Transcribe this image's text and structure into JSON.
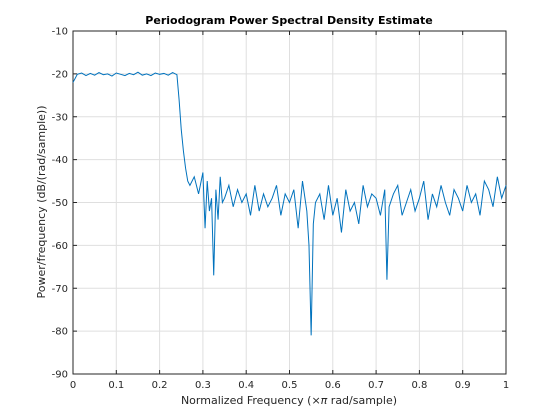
{
  "chart_data": {
    "type": "line",
    "title": "Periodogram Power Spectral Density Estimate",
    "xlabel_prefix": "Normalized Frequency  (",
    "xlabel_symbol": "×π",
    "xlabel_suffix": " rad/sample)",
    "ylabel": "Power/frequency (dB/(rad/sample))",
    "xlim": [
      0,
      1
    ],
    "ylim": [
      -90,
      -10
    ],
    "xticks": [
      0,
      0.1,
      0.2,
      0.3,
      0.4,
      0.5,
      0.6,
      0.7,
      0.8,
      0.9,
      1
    ],
    "xtick_labels": [
      "0",
      "0.1",
      "0.2",
      "0.3",
      "0.4",
      "0.5",
      "0.6",
      "0.7",
      "0.8",
      "0.9",
      "1"
    ],
    "yticks": [
      -90,
      -80,
      -70,
      -60,
      -50,
      -40,
      -30,
      -20,
      -10
    ],
    "ytick_labels": [
      "-90",
      "-80",
      "-70",
      "-60",
      "-50",
      "-40",
      "-30",
      "-20",
      "-10"
    ],
    "grid": true,
    "colors": {
      "line": "#0072bd",
      "grid": "#dfdfdf",
      "axes": "#262626"
    },
    "series": [
      {
        "x": [
          0,
          0.01,
          0.02,
          0.03,
          0.04,
          0.05,
          0.06,
          0.07,
          0.08,
          0.09,
          0.1,
          0.11,
          0.12,
          0.13,
          0.14,
          0.15,
          0.16,
          0.17,
          0.18,
          0.19,
          0.2,
          0.21,
          0.22,
          0.23,
          0.24,
          0.245,
          0.25,
          0.255,
          0.26,
          0.265,
          0.27,
          0.28,
          0.29,
          0.3,
          0.305,
          0.31,
          0.315,
          0.32,
          0.325,
          0.33,
          0.335,
          0.34,
          0.345,
          0.35,
          0.36,
          0.37,
          0.38,
          0.39,
          0.4,
          0.41,
          0.42,
          0.43,
          0.44,
          0.45,
          0.46,
          0.47,
          0.48,
          0.49,
          0.5,
          0.51,
          0.52,
          0.53,
          0.54,
          0.545,
          0.55,
          0.555,
          0.56,
          0.57,
          0.58,
          0.59,
          0.6,
          0.61,
          0.62,
          0.63,
          0.64,
          0.65,
          0.66,
          0.67,
          0.68,
          0.69,
          0.7,
          0.71,
          0.72,
          0.725,
          0.73,
          0.74,
          0.75,
          0.76,
          0.77,
          0.78,
          0.79,
          0.8,
          0.81,
          0.82,
          0.83,
          0.84,
          0.85,
          0.86,
          0.87,
          0.88,
          0.89,
          0.9,
          0.91,
          0.92,
          0.93,
          0.94,
          0.95,
          0.96,
          0.97,
          0.98,
          0.99,
          1
        ],
        "y": [
          -22,
          -20.1,
          -19.8,
          -20.4,
          -19.9,
          -20.3,
          -19.7,
          -20.2,
          -20.0,
          -20.5,
          -19.8,
          -20.1,
          -20.4,
          -19.9,
          -20.2,
          -19.6,
          -20.3,
          -20.0,
          -20.4,
          -19.8,
          -20.1,
          -19.9,
          -20.3,
          -19.7,
          -20.2,
          -26,
          -33,
          -38,
          -42,
          -45,
          -46,
          -44,
          -48,
          -43,
          -56,
          -45,
          -52,
          -49,
          -67,
          -47,
          -54,
          -44,
          -50,
          -49,
          -46,
          -51,
          -47,
          -50,
          -48,
          -53,
          -46,
          -52,
          -48,
          -51,
          -49,
          -46,
          -53,
          -48,
          -50,
          -47,
          -56,
          -45,
          -52,
          -60,
          -81,
          -55,
          -50,
          -48,
          -54,
          -46,
          -53,
          -49,
          -57,
          -47,
          -52,
          -50,
          -55,
          -46,
          -51,
          -48,
          -49,
          -53,
          -47,
          -68,
          -51,
          -48,
          -46,
          -53,
          -50,
          -47,
          -52,
          -49,
          -45,
          -54,
          -48,
          -51,
          -46,
          -50,
          -53,
          -47,
          -49,
          -52,
          -46,
          -50,
          -48,
          -53,
          -45,
          -47,
          -51,
          -44,
          -49,
          -46
        ]
      }
    ]
  }
}
